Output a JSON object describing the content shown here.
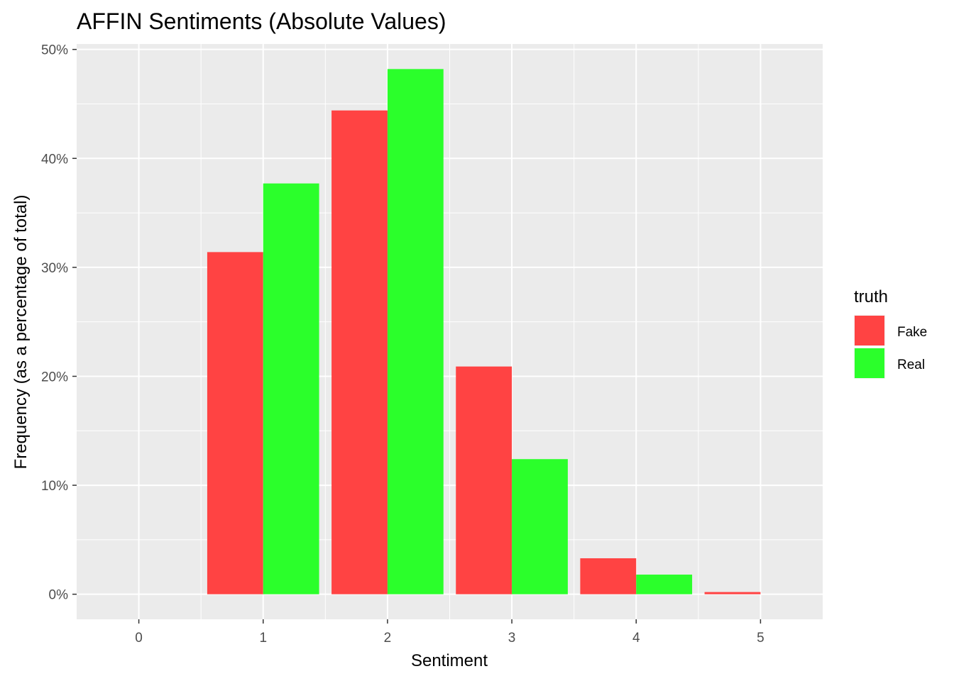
{
  "chart_data": {
    "type": "bar",
    "title": "AFFIN Sentiments (Absolute Values)",
    "xlabel": "Sentiment",
    "ylabel": "Frequency (as a percentage of total)",
    "x_ticks": [
      "0",
      "1",
      "2",
      "3",
      "4",
      "5"
    ],
    "y_ticks": [
      "0%",
      "10%",
      "20%",
      "30%",
      "40%",
      "50%"
    ],
    "xlim": [
      -0.5,
      5.5
    ],
    "ylim": [
      -2.3,
      50.5
    ],
    "grid": true,
    "legend": {
      "title": "truth",
      "position": "right",
      "entries": [
        "Fake",
        "Real"
      ]
    },
    "categories": [
      1,
      2,
      3,
      4,
      5
    ],
    "series": [
      {
        "name": "Fake",
        "color": "#FF4343",
        "values": [
          31.4,
          44.4,
          20.9,
          3.3,
          0.2
        ]
      },
      {
        "name": "Real",
        "color": "#2BFF2B",
        "values": [
          37.7,
          48.2,
          12.4,
          1.8,
          0.0
        ]
      }
    ]
  }
}
